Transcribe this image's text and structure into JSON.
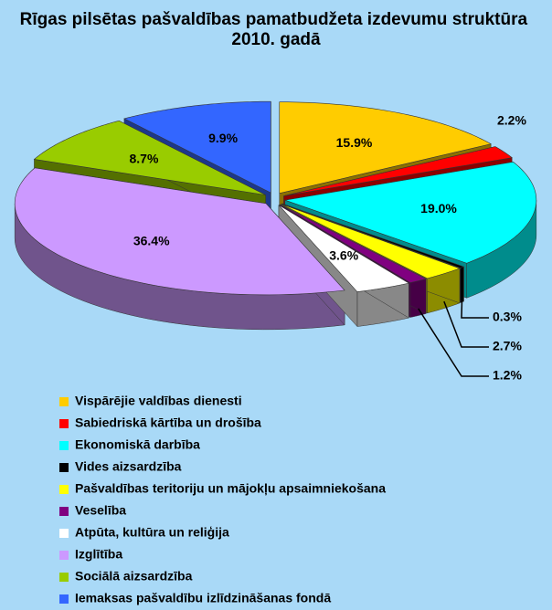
{
  "chart_data": {
    "type": "pie",
    "title": "Rīgas pilsētas pašvaldības pamatbudžeta izdevumu struktūra 2010. gadā",
    "categories": [
      "Vispārējie valdības dienesti",
      "Sabiedriskā kārtība un drošība",
      "Ekonomiskā darbība",
      "Vides aizsardzība",
      "Pašvaldības teritoriju un mājokļu apsaimniekošana",
      "Veselība",
      "Atpūta, kultūra un reliģija",
      "Izglītība",
      "Sociālā aizsardzība",
      "Iemaksas pašvaldību izlīdzināšanas fondā"
    ],
    "values": [
      15.9,
      2.2,
      19.0,
      0.3,
      2.7,
      1.2,
      3.6,
      36.4,
      8.7,
      9.9
    ],
    "value_labels": [
      "15.9%",
      "2.2%",
      "19.0%",
      "0.3%",
      "2.7%",
      "1.2%",
      "3.6%",
      "36.4%",
      "8.7%",
      "9.9%"
    ],
    "colors": [
      "#ffcc00",
      "#ff0000",
      "#00ffff",
      "#000000",
      "#ffff00",
      "#800080",
      "#ffffff",
      "#cc99ff",
      "#99cc00",
      "#3366ff"
    ]
  }
}
